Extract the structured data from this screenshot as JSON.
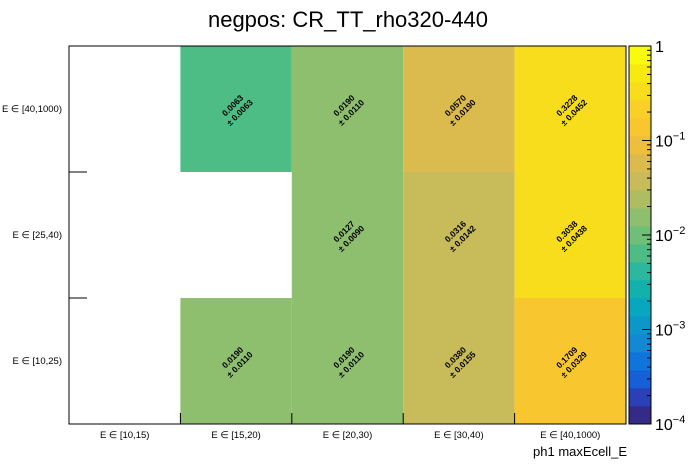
{
  "chart_data": {
    "type": "heatmap",
    "title": "negpos: CR_TT_rho320-440",
    "xlabel": "ph1 maxEcell_E",
    "ylabel": "",
    "x_categories": [
      "E ∈ [10,15)",
      "E ∈ [15,20)",
      "E ∈ [20,30)",
      "E ∈ [30,40)",
      "E ∈ [40,1000)"
    ],
    "y_categories": [
      "E ∈ [10,25)",
      "E ∈ [25,40)",
      "E ∈ [40,1000)"
    ],
    "cells": [
      {
        "x": 1,
        "y": 2,
        "value": 0.0063,
        "label": "0.0063",
        "err": "± 0.0063"
      },
      {
        "x": 2,
        "y": 2,
        "value": 0.019,
        "label": "0.0190",
        "err": "± 0.0110"
      },
      {
        "x": 3,
        "y": 2,
        "value": 0.057,
        "label": "0.0570",
        "err": "± 0.0190"
      },
      {
        "x": 4,
        "y": 2,
        "value": 0.3228,
        "label": "0.3228",
        "err": "± 0.0452"
      },
      {
        "x": 2,
        "y": 1,
        "value": 0.0127,
        "label": "0.0127",
        "err": "± 0.0090"
      },
      {
        "x": 3,
        "y": 1,
        "value": 0.0316,
        "label": "0.0316",
        "err": "± 0.0142"
      },
      {
        "x": 4,
        "y": 1,
        "value": 0.3038,
        "label": "0.3038",
        "err": "± 0.0438"
      },
      {
        "x": 1,
        "y": 0,
        "value": 0.019,
        "label": "0.0190",
        "err": "± 0.0110"
      },
      {
        "x": 2,
        "y": 0,
        "value": 0.019,
        "label": "0.0190",
        "err": "± 0.0110"
      },
      {
        "x": 3,
        "y": 0,
        "value": 0.038,
        "label": "0.0380",
        "err": "± 0.0155"
      },
      {
        "x": 4,
        "y": 0,
        "value": 0.1709,
        "label": "0.1709",
        "err": "± 0.0329"
      }
    ],
    "color_scale": {
      "type": "log",
      "range": [
        0.0001,
        1
      ],
      "ticks": [
        {
          "value": 1,
          "base": "1",
          "exp": ""
        },
        {
          "value": 0.1,
          "base": "10",
          "exp": "−1"
        },
        {
          "value": 0.01,
          "base": "10",
          "exp": "−2"
        },
        {
          "value": 0.001,
          "base": "10",
          "exp": "−3"
        },
        {
          "value": 0.0001,
          "base": "10",
          "exp": "−4"
        }
      ],
      "palette": [
        "#352a87",
        "#2b3fb6",
        "#1560d6",
        "#0f75dc",
        "#1388d3",
        "#0b98c9",
        "#06a7bf",
        "#12b1ac",
        "#2cb89c",
        "#4ebd85",
        "#6fbf78",
        "#8ebf6e",
        "#aebd62",
        "#c8bb5a",
        "#dcbb4e",
        "#eebf3c",
        "#f8c730",
        "#fad028",
        "#f8dd1c",
        "#f6ea10",
        "#f9fb0e"
      ]
    },
    "grid": false,
    "legend": "right colorbar"
  }
}
